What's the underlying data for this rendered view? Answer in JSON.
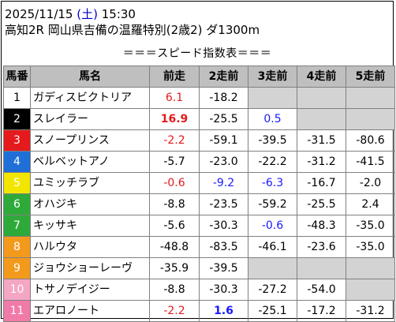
{
  "header": {
    "date": "2025/11/15",
    "day_of_week": "(土)",
    "time": "15:30",
    "race": "高知2R 岡山県吉備の温羅特別(2歳2) ダ1300m"
  },
  "subtitle": "＝＝＝スピード指数表＝＝＝",
  "colors": {
    "header_bg": "#bfbfbf",
    "empty_cell": "#d3d3d3",
    "highlight_red": "#e41a1c",
    "highlight_blue": "#1a1aff"
  },
  "columns": [
    "馬番",
    "馬名",
    "前走",
    "2走前",
    "3走前",
    "4走前",
    "5走前"
  ],
  "rows": [
    {
      "num": "1",
      "bg": "#ffffff",
      "fg": "#000000",
      "name": "ガディスビクトリア",
      "cells": [
        {
          "v": "6.1",
          "s": "red"
        },
        {
          "v": "-18.2",
          "s": ""
        },
        {
          "v": "",
          "s": "empty"
        },
        {
          "v": "",
          "s": "empty"
        },
        {
          "v": "",
          "s": "empty"
        }
      ]
    },
    {
      "num": "2",
      "bg": "#000000",
      "fg": "#ffffff",
      "name": "スレイラー",
      "cells": [
        {
          "v": "16.9",
          "s": "red bold"
        },
        {
          "v": "-25.5",
          "s": ""
        },
        {
          "v": "0.5",
          "s": "blue"
        },
        {
          "v": "",
          "s": "empty"
        },
        {
          "v": "",
          "s": "empty"
        }
      ]
    },
    {
      "num": "3",
      "bg": "#e41a1c",
      "fg": "#ffffff",
      "name": "スノープリンス",
      "cells": [
        {
          "v": "-2.2",
          "s": "red"
        },
        {
          "v": "-59.1",
          "s": ""
        },
        {
          "v": "-39.5",
          "s": ""
        },
        {
          "v": "-31.5",
          "s": ""
        },
        {
          "v": "-80.6",
          "s": ""
        }
      ]
    },
    {
      "num": "4",
      "bg": "#1f6fd6",
      "fg": "#ffffff",
      "name": "ベルベットアノ",
      "cells": [
        {
          "v": "-5.7",
          "s": ""
        },
        {
          "v": "-23.0",
          "s": ""
        },
        {
          "v": "-22.2",
          "s": ""
        },
        {
          "v": "-31.2",
          "s": ""
        },
        {
          "v": "-41.5",
          "s": ""
        }
      ]
    },
    {
      "num": "5",
      "bg": "#f2e600",
      "fg": "#ffffff",
      "name": "ユミッチラブ",
      "cells": [
        {
          "v": "-0.6",
          "s": "red"
        },
        {
          "v": "-9.2",
          "s": "blue"
        },
        {
          "v": "-6.3",
          "s": "blue"
        },
        {
          "v": "-16.7",
          "s": ""
        },
        {
          "v": "-2.0",
          "s": ""
        }
      ]
    },
    {
      "num": "6",
      "bg": "#2eaa3a",
      "fg": "#ffffff",
      "name": "オハジキ",
      "cells": [
        {
          "v": "-8.8",
          "s": ""
        },
        {
          "v": "-23.5",
          "s": ""
        },
        {
          "v": "-59.2",
          "s": ""
        },
        {
          "v": "-25.5",
          "s": ""
        },
        {
          "v": "2.4",
          "s": ""
        }
      ]
    },
    {
      "num": "7",
      "bg": "#2eaa3a",
      "fg": "#ffffff",
      "name": "キッサキ",
      "cells": [
        {
          "v": "-5.6",
          "s": ""
        },
        {
          "v": "-30.3",
          "s": ""
        },
        {
          "v": "-0.6",
          "s": "blue"
        },
        {
          "v": "-48.3",
          "s": ""
        },
        {
          "v": "-35.0",
          "s": ""
        }
      ]
    },
    {
      "num": "8",
      "bg": "#f39a1c",
      "fg": "#ffffff",
      "name": "ハルウタ",
      "cells": [
        {
          "v": "-48.8",
          "s": ""
        },
        {
          "v": "-83.5",
          "s": ""
        },
        {
          "v": "-46.1",
          "s": ""
        },
        {
          "v": "-23.6",
          "s": ""
        },
        {
          "v": "-35.0",
          "s": ""
        }
      ]
    },
    {
      "num": "9",
      "bg": "#f39a1c",
      "fg": "#ffffff",
      "name": "ジョウショーレーヴ",
      "cells": [
        {
          "v": "-35.9",
          "s": ""
        },
        {
          "v": "-39.5",
          "s": ""
        },
        {
          "v": "",
          "s": "empty"
        },
        {
          "v": "",
          "s": "empty"
        },
        {
          "v": "",
          "s": "empty"
        }
      ]
    },
    {
      "num": "10",
      "bg": "#f4a6c4",
      "fg": "#ffffff",
      "name": "トサノデイジー",
      "cells": [
        {
          "v": "-8.8",
          "s": ""
        },
        {
          "v": "-30.3",
          "s": ""
        },
        {
          "v": "-27.2",
          "s": ""
        },
        {
          "v": "-54.0",
          "s": ""
        },
        {
          "v": "",
          "s": "empty"
        }
      ]
    },
    {
      "num": "11",
      "bg": "#f07aa8",
      "fg": "#ffffff",
      "name": "エアロノート",
      "cells": [
        {
          "v": "-2.2",
          "s": "red"
        },
        {
          "v": "1.6",
          "s": "blue bold"
        },
        {
          "v": "-25.1",
          "s": ""
        },
        {
          "v": "-17.2",
          "s": ""
        },
        {
          "v": "-31.2",
          "s": ""
        }
      ]
    }
  ]
}
